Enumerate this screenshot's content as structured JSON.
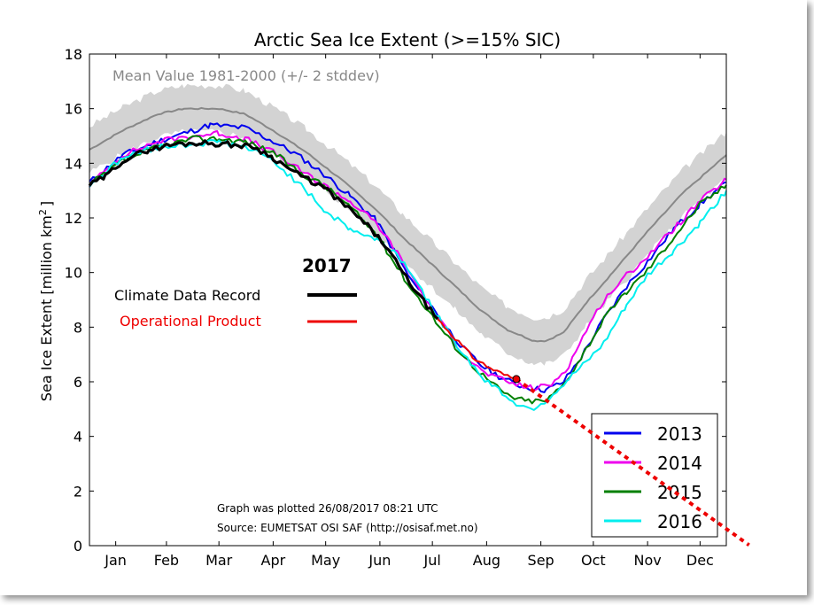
{
  "chart_data": {
    "type": "line",
    "title": "Arctic Sea Ice Extent (>=15% SIC)",
    "ylabel": "Sea Ice Extent [million km",
    "ylabel_sup": "2",
    "ylabel_end": "]",
    "ylim": [
      0,
      18
    ],
    "xlim": [
      1,
      365
    ],
    "yticks": [
      0,
      2,
      4,
      6,
      8,
      10,
      12,
      14,
      16,
      18
    ],
    "months": [
      "Jan",
      "Feb",
      "Mar",
      "Apr",
      "May",
      "Jun",
      "Jul",
      "Aug",
      "Sep",
      "Oct",
      "Nov",
      "Dec"
    ],
    "month_day": [
      16,
      45,
      75,
      106,
      136,
      167,
      197,
      228,
      259,
      289,
      320,
      350
    ],
    "grid": false,
    "mean_label": "Mean Value 1981-2000 (+/- 2 stddev)",
    "mean_color": "#888888",
    "band_color": "#d3d3d3",
    "mean": [
      [
        1,
        14.5
      ],
      [
        20,
        15.2
      ],
      [
        40,
        15.8
      ],
      [
        55,
        16.0
      ],
      [
        75,
        16.0
      ],
      [
        90,
        15.8
      ],
      [
        106,
        15.2
      ],
      [
        125,
        14.4
      ],
      [
        145,
        13.4
      ],
      [
        165,
        12.3
      ],
      [
        180,
        11.3
      ],
      [
        195,
        10.4
      ],
      [
        210,
        9.5
      ],
      [
        225,
        8.6
      ],
      [
        240,
        7.9
      ],
      [
        255,
        7.5
      ],
      [
        262,
        7.5
      ],
      [
        272,
        7.8
      ],
      [
        285,
        8.9
      ],
      [
        300,
        10.0
      ],
      [
        320,
        11.5
      ],
      [
        340,
        12.9
      ],
      [
        365,
        14.3
      ]
    ],
    "band_width": 0.85,
    "series": [
      {
        "name": "2013",
        "color": "#0000ee",
        "points": [
          [
            1,
            13.3
          ],
          [
            20,
            14.3
          ],
          [
            40,
            14.8
          ],
          [
            55,
            15.1
          ],
          [
            70,
            15.4
          ],
          [
            90,
            15.3
          ],
          [
            106,
            14.8
          ],
          [
            120,
            14.3
          ],
          [
            135,
            13.6
          ],
          [
            150,
            12.8
          ],
          [
            165,
            11.9
          ],
          [
            175,
            10.8
          ],
          [
            185,
            9.7
          ],
          [
            195,
            8.9
          ],
          [
            205,
            8.0
          ],
          [
            215,
            7.2
          ],
          [
            225,
            6.6
          ],
          [
            235,
            6.2
          ],
          [
            245,
            5.9
          ],
          [
            255,
            5.75
          ],
          [
            262,
            5.7
          ],
          [
            272,
            6.0
          ],
          [
            282,
            6.9
          ],
          [
            295,
            8.3
          ],
          [
            308,
            9.5
          ],
          [
            320,
            10.4
          ],
          [
            335,
            11.6
          ],
          [
            350,
            12.5
          ],
          [
            365,
            13.3
          ]
        ]
      },
      {
        "name": "2014",
        "color": "#ee00ee",
        "points": [
          [
            1,
            13.2
          ],
          [
            20,
            14.3
          ],
          [
            40,
            14.8
          ],
          [
            60,
            15.0
          ],
          [
            75,
            15.1
          ],
          [
            90,
            14.9
          ],
          [
            106,
            14.4
          ],
          [
            120,
            13.8
          ],
          [
            135,
            13.2
          ],
          [
            150,
            12.6
          ],
          [
            165,
            11.8
          ],
          [
            175,
            10.9
          ],
          [
            185,
            9.9
          ],
          [
            195,
            8.8
          ],
          [
            205,
            7.9
          ],
          [
            215,
            7.0
          ],
          [
            225,
            6.4
          ],
          [
            235,
            6.1
          ],
          [
            245,
            5.9
          ],
          [
            255,
            5.75
          ],
          [
            265,
            5.9
          ],
          [
            275,
            6.6
          ],
          [
            285,
            7.9
          ],
          [
            295,
            9.0
          ],
          [
            308,
            9.9
          ],
          [
            320,
            10.6
          ],
          [
            335,
            11.6
          ],
          [
            350,
            12.6
          ],
          [
            365,
            13.4
          ]
        ]
      },
      {
        "name": "2015",
        "color": "#007f00",
        "points": [
          [
            1,
            13.2
          ],
          [
            20,
            14.1
          ],
          [
            40,
            14.6
          ],
          [
            60,
            14.9
          ],
          [
            75,
            14.9
          ],
          [
            90,
            14.8
          ],
          [
            106,
            14.4
          ],
          [
            120,
            13.7
          ],
          [
            135,
            13.2
          ],
          [
            150,
            12.4
          ],
          [
            165,
            11.4
          ],
          [
            175,
            10.4
          ],
          [
            185,
            9.4
          ],
          [
            195,
            8.6
          ],
          [
            200,
            8.1
          ],
          [
            210,
            7.3
          ],
          [
            220,
            6.6
          ],
          [
            230,
            6.0
          ],
          [
            240,
            5.5
          ],
          [
            250,
            5.3
          ],
          [
            262,
            5.3
          ],
          [
            272,
            5.9
          ],
          [
            283,
            7.0
          ],
          [
            295,
            8.3
          ],
          [
            308,
            9.3
          ],
          [
            320,
            10.1
          ],
          [
            335,
            11.3
          ],
          [
            350,
            12.5
          ],
          [
            365,
            13.2
          ]
        ]
      },
      {
        "name": "2016",
        "color": "#00eeee",
        "points": [
          [
            1,
            13.2
          ],
          [
            20,
            14.2
          ],
          [
            40,
            14.6
          ],
          [
            60,
            14.7
          ],
          [
            75,
            14.8
          ],
          [
            90,
            14.6
          ],
          [
            106,
            14.1
          ],
          [
            120,
            13.3
          ],
          [
            135,
            12.3
          ],
          [
            150,
            11.6
          ],
          [
            165,
            11.2
          ],
          [
            175,
            10.8
          ],
          [
            185,
            10.0
          ],
          [
            195,
            8.9
          ],
          [
            205,
            7.9
          ],
          [
            215,
            7.0
          ],
          [
            225,
            6.2
          ],
          [
            235,
            5.7
          ],
          [
            245,
            5.2
          ],
          [
            253,
            5.0
          ],
          [
            262,
            5.3
          ],
          [
            275,
            6.1
          ],
          [
            285,
            6.7
          ],
          [
            295,
            7.4
          ],
          [
            308,
            8.8
          ],
          [
            320,
            9.9
          ],
          [
            335,
            10.8
          ],
          [
            350,
            11.8
          ],
          [
            365,
            13.0
          ]
        ]
      }
    ],
    "record_2017": {
      "year_label": "2017",
      "cdr_label": "Climate Data Record",
      "cdr_color": "#000000",
      "op_label": "Operational Product",
      "op_color": "#ee0000",
      "cdr_points": [
        [
          1,
          13.2
        ],
        [
          10,
          13.5
        ],
        [
          20,
          14.1
        ],
        [
          35,
          14.5
        ],
        [
          50,
          14.7
        ],
        [
          65,
          14.75
        ],
        [
          80,
          14.7
        ],
        [
          95,
          14.6
        ],
        [
          106,
          14.2
        ],
        [
          120,
          13.6
        ],
        [
          135,
          13.1
        ],
        [
          150,
          12.3
        ],
        [
          160,
          11.7
        ],
        [
          170,
          11.0
        ],
        [
          180,
          10.0
        ],
        [
          190,
          9.1
        ],
        [
          200,
          8.3
        ]
      ],
      "op_points": [
        [
          200,
          8.3
        ],
        [
          210,
          7.6
        ],
        [
          220,
          6.9
        ],
        [
          230,
          6.5
        ],
        [
          240,
          6.2
        ],
        [
          245,
          6.1
        ]
      ],
      "last_point": [
        245,
        6.1
      ]
    },
    "trend": {
      "color": "#ee0000",
      "from": [
        245,
        6.1
      ],
      "slope_per_day": -0.0457,
      "to_day": 378
    },
    "legend_placement": "bottom-right",
    "annotations": {
      "plotted": "Graph was plotted 26/08/2017 08:21 UTC",
      "source": "Source: EUMETSAT OSI SAF (http://osisaf.met.no)"
    }
  }
}
